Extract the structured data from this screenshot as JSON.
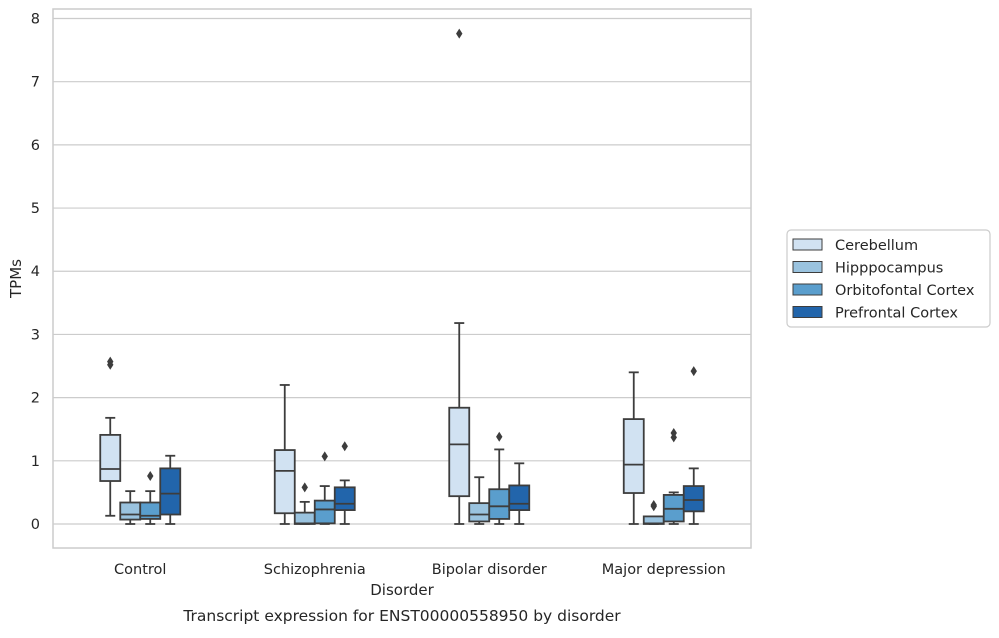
{
  "chart_data": {
    "type": "box",
    "title": "Transcript expression for ENST00000558950 by disorder",
    "xlabel": "Disorder",
    "ylabel": "TPMs",
    "ylim": [
      -0.38,
      8.15
    ],
    "yticks": [
      0,
      1,
      2,
      3,
      4,
      5,
      6,
      7,
      8
    ],
    "grid": "horizontal",
    "legend_position": "right",
    "categories": [
      "Control",
      "Schizophrenia",
      "Bipolar disorder",
      "Major depression"
    ],
    "series": [
      {
        "name": "Cerebellum",
        "color": "#d1e2f2",
        "boxes": [
          {
            "whislo": 0.13,
            "q1": 0.68,
            "med": 0.87,
            "q3": 1.41,
            "whishi": 1.68,
            "fliers": [
              2.52,
              2.57
            ]
          },
          {
            "whislo": 0.0,
            "q1": 0.17,
            "med": 0.84,
            "q3": 1.17,
            "whishi": 2.2,
            "fliers": []
          },
          {
            "whislo": 0.0,
            "q1": 0.44,
            "med": 1.26,
            "q3": 1.84,
            "whishi": 3.18,
            "fliers": [
              7.76
            ]
          },
          {
            "whislo": 0.0,
            "q1": 0.49,
            "med": 0.94,
            "q3": 1.66,
            "whishi": 2.4,
            "fliers": []
          }
        ]
      },
      {
        "name": "Hipppocampus",
        "color": "#9ac3df",
        "boxes": [
          {
            "whislo": 0.0,
            "q1": 0.07,
            "med": 0.15,
            "q3": 0.34,
            "whishi": 0.52,
            "fliers": []
          },
          {
            "whislo": 0.0,
            "q1": 0.0,
            "med": 0.01,
            "q3": 0.18,
            "whishi": 0.35,
            "fliers": [
              0.58
            ]
          },
          {
            "whislo": 0.0,
            "q1": 0.04,
            "med": 0.15,
            "q3": 0.33,
            "whishi": 0.74,
            "fliers": []
          },
          {
            "whislo": 0.0,
            "q1": 0.0,
            "med": 0.01,
            "q3": 0.12,
            "whishi": 0.12,
            "fliers": [
              0.28,
              0.3
            ]
          }
        ]
      },
      {
        "name": "Orbitofontal Cortex",
        "color": "#5a9ecd",
        "boxes": [
          {
            "whislo": 0.0,
            "q1": 0.08,
            "med": 0.13,
            "q3": 0.34,
            "whishi": 0.52,
            "fliers": [
              0.76
            ]
          },
          {
            "whislo": 0.0,
            "q1": 0.01,
            "med": 0.23,
            "q3": 0.37,
            "whishi": 0.6,
            "fliers": [
              1.07
            ]
          },
          {
            "whislo": 0.0,
            "q1": 0.08,
            "med": 0.28,
            "q3": 0.55,
            "whishi": 1.18,
            "fliers": [
              1.38
            ]
          },
          {
            "whislo": 0.0,
            "q1": 0.04,
            "med": 0.24,
            "q3": 0.46,
            "whishi": 0.5,
            "fliers": [
              1.37,
              1.44
            ]
          }
        ]
      },
      {
        "name": "Prefrontal Cortex",
        "color": "#2265ab",
        "boxes": [
          {
            "whislo": 0.0,
            "q1": 0.15,
            "med": 0.48,
            "q3": 0.88,
            "whishi": 1.08,
            "fliers": []
          },
          {
            "whislo": 0.0,
            "q1": 0.22,
            "med": 0.32,
            "q3": 0.58,
            "whishi": 0.69,
            "fliers": [
              1.23
            ]
          },
          {
            "whislo": 0.0,
            "q1": 0.22,
            "med": 0.32,
            "q3": 0.61,
            "whishi": 0.96,
            "fliers": []
          },
          {
            "whislo": 0.0,
            "q1": 0.2,
            "med": 0.38,
            "q3": 0.6,
            "whishi": 0.88,
            "fliers": [
              2.42
            ]
          }
        ]
      }
    ],
    "colors": {
      "grid": "#cccccc",
      "frame": "#cccccc",
      "line": "#3d3d3d"
    }
  }
}
